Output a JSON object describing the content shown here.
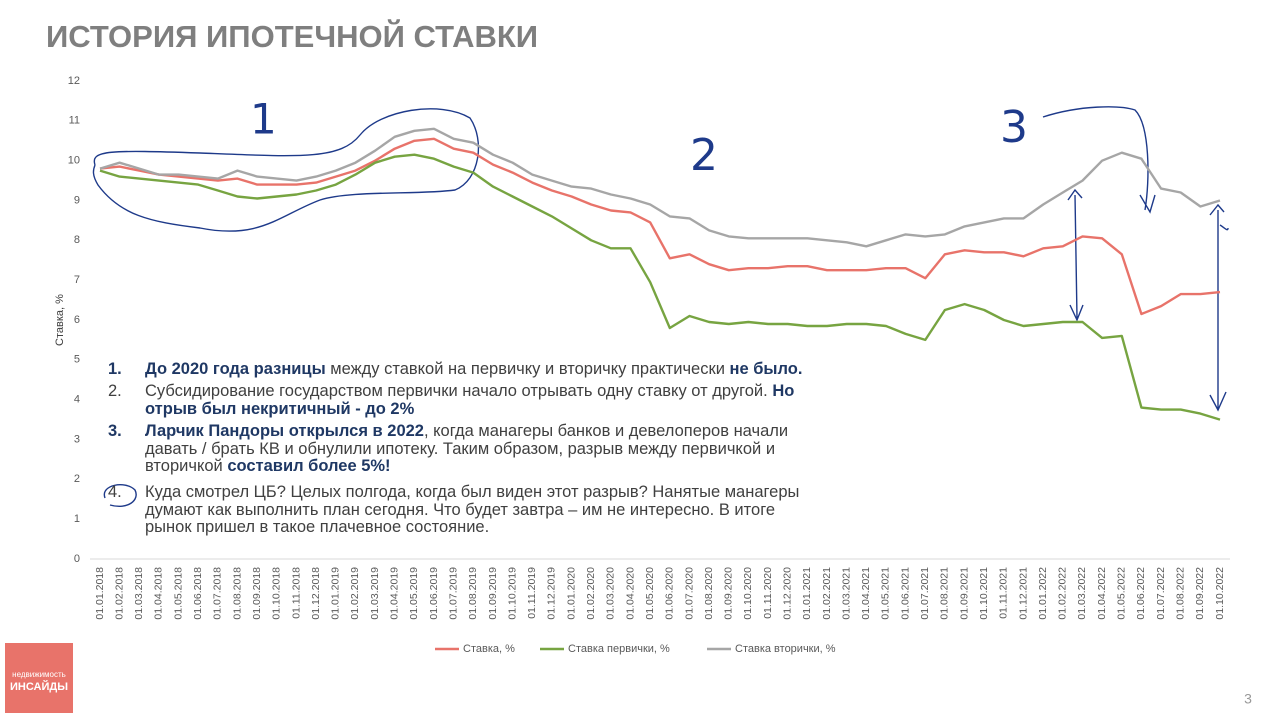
{
  "header": {
    "title": "ИСТОРИЯ ИПОТЕЧНОЙ СТАВКИ"
  },
  "chart_data": {
    "type": "line",
    "y_label": "Ставка, %",
    "categories": [
      "01.01.2018",
      "01.02.2018",
      "01.03.2018",
      "01.04.2018",
      "01.05.2018",
      "01.06.2018",
      "01.07.2018",
      "01.08.2018",
      "01.09.2018",
      "01.10.2018",
      "01.11.2018",
      "01.12.2018",
      "01.01.2019",
      "01.02.2019",
      "01.03.2019",
      "01.04.2019",
      "01.05.2019",
      "01.06.2019",
      "01.07.2019",
      "01.08.2019",
      "01.09.2019",
      "01.10.2019",
      "01.11.2019",
      "01.12.2019",
      "01.01.2020",
      "01.02.2020",
      "01.03.2020",
      "01.04.2020",
      "01.05.2020",
      "01.06.2020",
      "01.07.2020",
      "01.08.2020",
      "01.09.2020",
      "01.10.2020",
      "01.11.2020",
      "01.12.2020",
      "01.01.2021",
      "01.02.2021",
      "01.03.2021",
      "01.04.2021",
      "01.05.2021",
      "01.06.2021",
      "01.07.2021",
      "01.08.2021",
      "01.09.2021",
      "01.10.2021",
      "01.11.2021",
      "01.12.2021",
      "01.01.2022",
      "01.02.2022",
      "01.03.2022",
      "01.04.2022",
      "01.05.2022",
      "01.06.2022",
      "01.07.2022",
      "01.08.2022",
      "01.09.2022",
      "01.10.2022"
    ],
    "series": [
      {
        "name": "Ставка, %",
        "color": "#e8736a",
        "values": [
          9.8,
          9.85,
          9.75,
          9.65,
          9.6,
          9.55,
          9.5,
          9.55,
          9.4,
          9.4,
          9.4,
          9.45,
          9.6,
          9.75,
          10.0,
          10.3,
          10.5,
          10.55,
          10.3,
          10.2,
          9.9,
          9.7,
          9.45,
          9.25,
          9.1,
          8.9,
          8.75,
          8.7,
          8.45,
          7.55,
          7.65,
          7.4,
          7.25,
          7.3,
          7.3,
          7.35,
          7.35,
          7.25,
          7.25,
          7.25,
          7.3,
          7.3,
          7.05,
          7.65,
          7.75,
          7.7,
          7.7,
          7.6,
          7.8,
          7.85,
          8.1,
          8.05,
          7.65,
          6.15,
          6.35,
          6.65,
          6.65,
          6.7
        ]
      },
      {
        "name": "Ставка первички, %",
        "color": "#77a441",
        "values": [
          9.75,
          9.6,
          9.55,
          9.5,
          9.45,
          9.4,
          9.25,
          9.1,
          9.05,
          9.1,
          9.15,
          9.25,
          9.4,
          9.65,
          9.95,
          10.1,
          10.15,
          10.05,
          9.85,
          9.7,
          9.35,
          9.1,
          8.85,
          8.6,
          8.3,
          8.0,
          7.8,
          7.8,
          6.95,
          5.8,
          6.1,
          5.95,
          5.9,
          5.95,
          5.9,
          5.9,
          5.85,
          5.85,
          5.9,
          5.9,
          5.85,
          5.65,
          5.5,
          6.25,
          6.4,
          6.25,
          6.0,
          5.85,
          5.9,
          5.95,
          5.95,
          5.55,
          5.6,
          3.8,
          3.75,
          3.75,
          3.65,
          3.5
        ]
      },
      {
        "name": "Ставка вторички, %",
        "color": "#a6a6a6",
        "values": [
          9.8,
          9.95,
          9.8,
          9.65,
          9.65,
          9.6,
          9.55,
          9.75,
          9.6,
          9.55,
          9.5,
          9.6,
          9.75,
          9.95,
          10.25,
          10.6,
          10.75,
          10.8,
          10.55,
          10.45,
          10.15,
          9.95,
          9.65,
          9.5,
          9.35,
          9.3,
          9.15,
          9.05,
          8.9,
          8.6,
          8.55,
          8.25,
          8.1,
          8.05,
          8.05,
          8.05,
          8.05,
          8.0,
          7.95,
          7.85,
          8.0,
          8.15,
          8.1,
          8.15,
          8.35,
          8.45,
          8.55,
          8.55,
          8.9,
          9.2,
          9.5,
          10.0,
          10.2,
          10.05,
          9.3,
          9.2,
          8.85,
          9.0
        ]
      }
    ],
    "ylim": [
      0,
      12
    ],
    "yticks": [
      0,
      1,
      2,
      3,
      4,
      5,
      6,
      7,
      8,
      9,
      10,
      11,
      12
    ],
    "grid": false,
    "legend": "bottom"
  },
  "notes": [
    {
      "marker": "1.",
      "lines": [
        [
          {
            "text": "До 2020 года разницы",
            "bold": true
          },
          {
            "text": " между ставкой на первичку и вторичку практически ",
            "bold": false
          },
          {
            "text": "не было.",
            "bold": true
          }
        ]
      ]
    },
    {
      "marker": "2.",
      "lines": [
        [
          {
            "text": "Субсидирование государством первички начало отрывать одну ставку от другой. ",
            "bold": false
          },
          {
            "text": "Но",
            "bold": true
          }
        ],
        [
          {
            "text": "отрыв был некритичный - до 2%",
            "bold": true
          }
        ]
      ]
    },
    {
      "marker": "3.",
      "lines": [
        [
          {
            "text": "Ларчик Пандоры открылся в 2022",
            "bold": true
          },
          {
            "text": ", когда манагеры банков и девелоперов начали",
            "bold": false
          }
        ],
        [
          {
            "text": "давать / брать КВ и обнулили ипотеку. Таким образом, разрыв между первичкой и",
            "bold": false
          }
        ],
        [
          {
            "text": "вторичкой ",
            "bold": false
          },
          {
            "text": "составил более 5%!",
            "bold": true
          }
        ]
      ]
    },
    {
      "marker": "4.",
      "lines": [
        [
          {
            "text": "Куда смотрел ЦБ? Целых полгода, когда был виден этот разрыв? Нанятые манагеры",
            "bold": false
          }
        ],
        [
          {
            "text": "думают как выполнить план сегодня. Что будет завтра – им не интересно. В итоге",
            "bold": false
          }
        ],
        [
          {
            "text": "рынок пришел в такое плачевное состояние.",
            "bold": false
          }
        ]
      ]
    }
  ],
  "handwriting": [
    "1",
    "2",
    "3"
  ],
  "logo": {
    "line1": "недвижимость",
    "line2": "ИНСАЙДЫ"
  },
  "page_number": "3"
}
